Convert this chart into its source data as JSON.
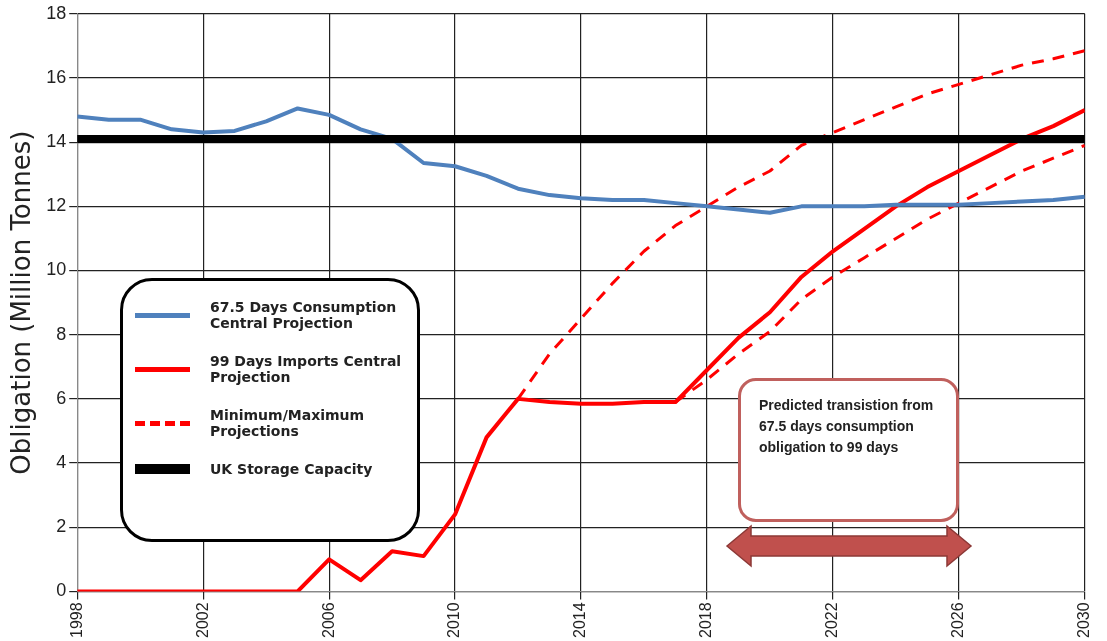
{
  "chart_data": {
    "type": "line",
    "ylabel": "Obligation (Million Tonnes)",
    "x": [
      1998,
      1999,
      2000,
      2001,
      2002,
      2003,
      2004,
      2005,
      2006,
      2007,
      2008,
      2009,
      2010,
      2011,
      2012,
      2013,
      2014,
      2015,
      2016,
      2017,
      2018,
      2019,
      2020,
      2021,
      2022,
      2023,
      2024,
      2025,
      2026,
      2027,
      2028,
      2029,
      2030
    ],
    "series": [
      {
        "name": "67.5  Days Consumption Central Projection",
        "color": "#4f81bd",
        "values": [
          14.8,
          14.7,
          14.7,
          14.4,
          14.3,
          14.35,
          14.65,
          15.05,
          14.85,
          14.4,
          14.1,
          13.35,
          13.25,
          12.95,
          12.55,
          12.35,
          12.25,
          12.2,
          12.2,
          12.1,
          12.0,
          11.9,
          11.8,
          12.0,
          12.0,
          12.0,
          12.05,
          12.05,
          12.05,
          12.1,
          12.15,
          12.2,
          12.3
        ]
      },
      {
        "name": "99 Days Imports Central Projection",
        "color": "#ff0000",
        "values": [
          0,
          0,
          0,
          0,
          0,
          0,
          0,
          0,
          1.0,
          0.35,
          1.25,
          1.1,
          2.4,
          4.8,
          6.0,
          5.9,
          5.85,
          5.85,
          5.9,
          5.9,
          6.9,
          7.9,
          8.7,
          9.8,
          10.6,
          11.3,
          12.0,
          12.6,
          13.1,
          13.6,
          14.1,
          14.5,
          15.0
        ]
      },
      {
        "name": "Minimum/Maximum Projections",
        "color": "#ff0000",
        "line_style": "dashed",
        "values": [
          null,
          null,
          null,
          null,
          null,
          null,
          null,
          null,
          null,
          null,
          null,
          null,
          null,
          null,
          6.0,
          7.4,
          8.5,
          9.6,
          10.6,
          11.4,
          12.0,
          12.6,
          13.1,
          13.9,
          14.3,
          14.7,
          15.1,
          15.5,
          15.8,
          16.1,
          16.4,
          16.6,
          16.85
        ]
      },
      {
        "color": "#ff0000",
        "line_style": "dashed",
        "values": [
          null,
          null,
          null,
          null,
          null,
          null,
          null,
          null,
          null,
          null,
          null,
          null,
          null,
          null,
          null,
          null,
          null,
          null,
          null,
          5.9,
          6.6,
          7.4,
          8.1,
          9.1,
          9.8,
          10.4,
          11.0,
          11.6,
          12.1,
          12.6,
          13.1,
          13.5,
          13.9
        ]
      }
    ],
    "xlim": [
      1998,
      2030
    ],
    "xticks": [
      1998,
      2002,
      2006,
      2010,
      2014,
      2018,
      2022,
      2026,
      2030
    ],
    "ylim": [
      0,
      18
    ],
    "yticks": [
      0,
      2,
      4,
      6,
      8,
      10,
      12,
      14,
      16,
      18
    ],
    "ref_lines": [
      {
        "axis": "y",
        "value": 14.1,
        "label": "UK Storage Capacity",
        "color": "#000000"
      }
    ],
    "annotations": [
      "Predicted transistion from 67.5 days consumption obligation to 99 days"
    ],
    "grid": true,
    "legend": "left",
    "marker": "none",
    "line_style": "solid"
  }
}
